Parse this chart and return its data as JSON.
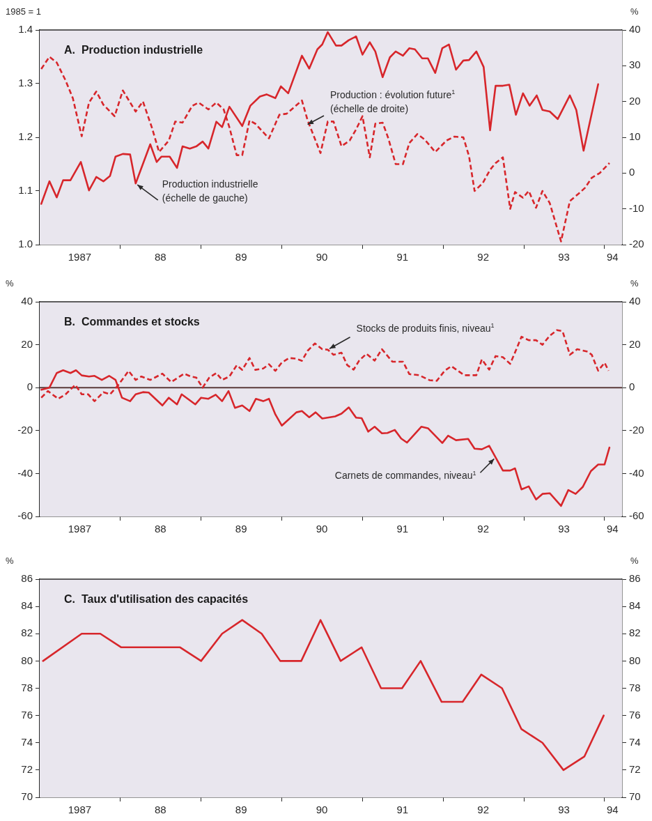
{
  "chart_data": [
    {
      "type": "line",
      "title": "A.  Production industrielle",
      "ylabel": "1985 = 1",
      "y2label": "%",
      "marker": "none",
      "xlim": [
        "1987-01-01",
        "1994-03-21"
      ],
      "xticks": [
        {
          "value": "1987-07-01",
          "label": "1987"
        },
        {
          "value": "1988-01-01",
          "label": null
        },
        {
          "value": "1988-07-01",
          "label": "88"
        },
        {
          "value": "1989-01-01",
          "label": null
        },
        {
          "value": "1989-07-01",
          "label": "89"
        },
        {
          "value": "1990-01-01",
          "label": null
        },
        {
          "value": "1990-07-01",
          "label": "90"
        },
        {
          "value": "1991-01-01",
          "label": null
        },
        {
          "value": "1991-07-01",
          "label": "91"
        },
        {
          "value": "1992-01-01",
          "label": null
        },
        {
          "value": "1992-07-01",
          "label": "92"
        },
        {
          "value": "1993-01-01",
          "label": null
        },
        {
          "value": "1993-07-01",
          "label": "93"
        },
        {
          "value": "1994-01-01",
          "label": null
        },
        {
          "value": "1994-02-06",
          "label": "94"
        }
      ],
      "ylim": [
        1,
        1.4
      ],
      "yticks": [
        {
          "value": 1,
          "label": "1.0"
        },
        1.1,
        1.2,
        1.3,
        1.4
      ],
      "y2lim": [
        -20,
        40
      ],
      "y2ticks": [
        -20,
        -10,
        0,
        10,
        20,
        30,
        40
      ],
      "series": [
        {
          "color": "#d7262b",
          "line_style": "solid",
          "x": [
            "1987-01-08",
            "1987-02-14",
            "1987-03-19",
            "1987-04-17",
            "1987-05-20",
            "1987-07-06",
            "1987-08-12",
            "1987-09-14",
            "1987-10-16",
            "1987-11-15",
            "1987-12-10",
            "1988-01-12",
            "1988-02-14",
            "1988-03-11",
            "1988-05-16",
            "1988-06-14",
            "1988-07-06",
            "1988-08-12",
            "1988-09-14",
            "1988-10-09",
            "1988-11-11",
            "1988-12-10",
            "1989-01-08",
            "1989-02-03",
            "1989-03-11",
            "1989-04-06",
            "1989-05-09",
            "1989-07-06",
            "1989-08-12",
            "1989-09-24",
            "1989-10-24",
            "1989-12-03",
            "1989-12-28",
            "1990-01-30",
            "1990-04-02",
            "1990-05-05",
            "1990-06-11",
            "1990-07-03",
            "1990-07-28",
            "1990-09-03",
            "1990-09-28",
            "1990-10-31",
            "1990-12-03",
            "1991-01-01",
            "1991-02-03",
            "1991-02-28",
            "1991-04-02",
            "1991-05-05",
            "1991-05-31",
            "1991-07-03",
            "1991-08-01",
            "1991-08-26",
            "1991-09-28",
            "1991-10-24",
            "1991-11-26",
            "1991-12-28",
            "1992-01-27",
            "1992-02-28",
            "1992-04-02",
            "1992-04-28",
            "1992-05-31",
            "1992-07-03",
            "1992-08-01",
            "1992-08-26",
            "1992-09-28",
            "1992-10-27",
            "1992-11-26",
            "1992-12-28",
            "1993-01-27",
            "1993-02-28",
            "1993-03-26",
            "1993-04-28",
            "1993-06-03",
            "1993-07-28",
            "1993-08-26",
            "1993-09-28",
            "1993-12-03"
          ],
          "values": [
            1.076,
            1.118,
            1.088,
            1.12,
            1.12,
            1.154,
            1.101,
            1.126,
            1.118,
            1.128,
            1.164,
            1.169,
            1.168,
            1.114,
            1.187,
            1.154,
            1.164,
            1.164,
            1.143,
            1.183,
            1.179,
            1.183,
            1.192,
            1.179,
            1.229,
            1.219,
            1.257,
            1.221,
            1.259,
            1.276,
            1.28,
            1.273,
            1.295,
            1.282,
            1.352,
            1.328,
            1.364,
            1.373,
            1.396,
            1.371,
            1.371,
            1.381,
            1.388,
            1.354,
            1.377,
            1.36,
            1.312,
            1.349,
            1.36,
            1.352,
            1.366,
            1.364,
            1.347,
            1.347,
            1.32,
            1.366,
            1.373,
            1.326,
            1.343,
            1.344,
            1.36,
            1.331,
            1.213,
            1.296,
            1.296,
            1.298,
            1.242,
            1.282,
            1.259,
            1.278,
            1.251,
            1.248,
            1.234,
            1.278,
            1.251,
            1.175,
            1.299
          ]
        },
        {
          "color": "#d7262b",
          "line_style": "dashed",
          "axis": "y2",
          "x": [
            "1987-01-08",
            "1987-02-14",
            "1987-03-19",
            "1987-04-28",
            "1987-05-31",
            "1987-07-10",
            "1987-08-12",
            "1987-09-14",
            "1987-10-16",
            "1987-12-06",
            "1988-01-12",
            "1988-03-11",
            "1988-04-13",
            "1988-05-23",
            "1988-06-25",
            "1988-08-08",
            "1988-09-06",
            "1988-10-09",
            "1988-11-22",
            "1988-12-21",
            "1989-02-03",
            "1989-03-11",
            "1989-04-13",
            "1989-05-09",
            "1989-06-11",
            "1989-07-06",
            "1989-08-08",
            "1989-09-03",
            "1989-11-04",
            "1989-12-21",
            "1990-01-23",
            "1990-04-02",
            "1990-04-28",
            "1990-06-25",
            "1990-07-28",
            "1990-08-23",
            "1990-09-28",
            "1990-11-04",
            "1990-12-03",
            "1991-01-01",
            "1991-02-03",
            "1991-02-28",
            "1991-04-02",
            "1991-04-28",
            "1991-05-31",
            "1991-07-03",
            "1991-08-01",
            "1991-09-06",
            "1991-10-09",
            "1991-11-26",
            "1992-01-16",
            "1992-02-21",
            "1992-04-02",
            "1992-04-28",
            "1992-05-23",
            "1992-06-29",
            "1992-08-01",
            "1992-08-26",
            "1992-09-28",
            "1992-10-31",
            "1992-11-22",
            "1992-12-28",
            "1993-01-23",
            "1993-02-25",
            "1993-03-26",
            "1993-04-28",
            "1993-06-18",
            "1993-07-28",
            "1993-09-03",
            "1993-10-05",
            "1993-11-04",
            "1993-12-10",
            "1994-01-23"
          ],
          "values": [
            29.1,
            32.5,
            30.9,
            25.9,
            20.9,
            10.3,
            19.7,
            22.8,
            19.1,
            15.9,
            23.1,
            17.2,
            20,
            12.8,
            5.9,
            9.1,
            14.4,
            14.1,
            18.8,
            19.7,
            17.8,
            19.7,
            17.8,
            12.8,
            5,
            5,
            14.7,
            13.8,
            9.7,
            16.3,
            16.6,
            20.3,
            14.7,
            5.6,
            14.4,
            14.4,
            7.5,
            9.1,
            12.2,
            15.9,
            4.4,
            13.8,
            14.1,
            9.7,
            2.5,
            2.5,
            8.4,
            10.9,
            9.4,
            5.9,
            9.1,
            10.2,
            10,
            4.7,
            -5,
            -2.8,
            0.9,
            2.8,
            4.4,
            -10,
            -5.3,
            -6.9,
            -5,
            -9.7,
            -5,
            -8.4,
            -19.1,
            -7.8,
            -5.9,
            -4.1,
            -1.3,
            0,
            2.8
          ]
        }
      ],
      "annotations": [
        {
          "text": "Production industrielle (échelle de gauche)",
          "x": "1988-03-11",
          "y": 1.114
        },
        "Production : évolution future$^{1}$ (échelle de droite)"
      ]
    },
    {
      "type": "line",
      "title": "B.  Commandes et stocks",
      "ylabel": "%",
      "y2label": "%",
      "marker": "none",
      "xlim": [
        "1987-01-01",
        "1994-03-21"
      ],
      "xticks": [
        {
          "value": "1987-07-01",
          "label": "1987"
        },
        {
          "value": "1988-01-01",
          "label": null
        },
        {
          "value": "1988-07-01",
          "label": "88"
        },
        {
          "value": "1989-01-01",
          "label": null
        },
        {
          "value": "1989-07-01",
          "label": "89"
        },
        {
          "value": "1990-01-01",
          "label": null
        },
        {
          "value": "1990-07-01",
          "label": "90"
        },
        {
          "value": "1991-01-01",
          "label": null
        },
        {
          "value": "1991-07-01",
          "label": "91"
        },
        {
          "value": "1992-01-01",
          "label": null
        },
        {
          "value": "1992-07-01",
          "label": "92"
        },
        {
          "value": "1993-01-01",
          "label": null
        },
        {
          "value": "1993-07-01",
          "label": "93"
        },
        {
          "value": "1994-01-01",
          "label": null
        },
        {
          "value": "1994-02-06",
          "label": "94"
        }
      ],
      "ylim": [
        -60,
        40
      ],
      "yticks": [
        -60,
        -40,
        -20,
        0,
        20,
        40
      ],
      "y2lim": [
        -60,
        40
      ],
      "y2ticks": [
        -60,
        -40,
        -20,
        0,
        20,
        40
      ],
      "ref_lines": [
        {
          "axis": "y",
          "value": 0,
          "color": "#5a3a3a"
        }
      ],
      "series": [
        {
          "color": "#d7262b",
          "line_style": "dashed",
          "x": [
            "1987-01-08",
            "1987-02-07",
            "1987-03-26",
            "1987-04-28",
            "1987-06-11",
            "1987-07-10",
            "1987-08-08",
            "1987-09-06",
            "1987-10-16",
            "1987-11-15",
            "1987-12-21",
            "1988-02-07",
            "1988-03-11",
            "1988-04-06",
            "1988-05-16",
            "1988-07-10",
            "1988-08-19",
            "1988-10-16",
            "1988-11-15",
            "1988-12-10",
            "1989-01-08",
            "1989-02-07",
            "1989-03-11",
            "1989-04-06",
            "1989-05-09",
            "1989-06-11",
            "1989-07-06",
            "1989-08-08",
            "1989-09-03",
            "1989-10-09",
            "1989-11-04",
            "1989-12-03",
            "1990-01-01",
            "1990-02-03",
            "1990-03-08",
            "1990-04-02",
            "1990-04-28",
            "1990-05-31",
            "1990-07-03",
            "1990-07-28",
            "1990-08-23",
            "1990-09-28",
            "1990-10-24",
            "1990-11-22",
            "1990-12-17",
            "1991-01-19",
            "1991-02-25",
            "1991-03-30",
            "1991-05-16",
            "1991-07-03",
            "1991-08-01",
            "1991-09-14",
            "1991-10-31",
            "1991-12-03",
            "1992-01-08",
            "1992-02-07",
            "1992-03-15",
            "1992-04-06",
            "1992-05-31",
            "1992-06-25",
            "1992-07-28",
            "1992-08-26",
            "1992-09-28",
            "1992-10-31",
            "1992-11-26",
            "1992-12-21",
            "1993-01-23",
            "1993-02-25",
            "1993-03-26",
            "1993-04-28",
            "1993-05-31",
            "1993-06-25",
            "1993-07-28",
            "1993-08-30",
            "1993-10-16",
            "1993-11-04",
            "1993-12-03",
            "1994-01-01",
            "1994-01-19"
          ],
          "values": [
            -4.7,
            -1.6,
            -5.2,
            -3.1,
            1.3,
            -3.1,
            -3.1,
            -6.3,
            -2.1,
            -3.1,
            1,
            7.8,
            3.6,
            5.2,
            3.6,
            6.5,
            2.6,
            6.5,
            5.2,
            4.7,
            0,
            4.7,
            6.8,
            3.6,
            5.2,
            10.4,
            8.3,
            13.8,
            8.3,
            8.9,
            10.9,
            7.8,
            11.7,
            13.8,
            13.5,
            12.5,
            17.2,
            20.6,
            17.9,
            17.7,
            15.3,
            16.3,
            10.5,
            8.4,
            12.6,
            15.8,
            12.6,
            17.9,
            12.1,
            12.1,
            6.3,
            5.8,
            3.5,
            3.2,
            7.9,
            10,
            7.4,
            5.8,
            5.8,
            13.2,
            8.4,
            14.7,
            14.2,
            11.1,
            17.4,
            23.7,
            22.1,
            22.1,
            20,
            24.2,
            26.8,
            26.3,
            15.3,
            17.9,
            16.8,
            15.3,
            7.9,
            11.6,
            7.9
          ]
        },
        {
          "color": "#d7262b",
          "line_style": "solid",
          "x": [
            "1987-01-08",
            "1987-02-14",
            "1987-03-19",
            "1987-04-17",
            "1987-05-20",
            "1987-06-14",
            "1987-07-10",
            "1987-08-12",
            "1987-09-06",
            "1987-10-09",
            "1987-11-11",
            "1987-12-10",
            "1988-01-08",
            "1988-02-14",
            "1988-03-11",
            "1988-04-13",
            "1988-05-09",
            "1988-07-10",
            "1988-08-08",
            "1988-09-14",
            "1988-10-05",
            "1988-12-06",
            "1989-01-01",
            "1989-02-03",
            "1989-03-08",
            "1989-04-06",
            "1989-05-05",
            "1989-06-03",
            "1989-07-06",
            "1989-08-08",
            "1989-09-06",
            "1989-10-09",
            "1989-11-04",
            "1989-12-03",
            "1990-01-01",
            "1990-02-03",
            "1990-03-08",
            "1990-04-02",
            "1990-05-05",
            "1990-06-03",
            "1990-07-03",
            "1990-08-30",
            "1990-09-28",
            "1990-10-31",
            "1990-12-03",
            "1990-12-28",
            "1991-01-27",
            "1991-02-25",
            "1991-03-30",
            "1991-04-24",
            "1991-05-27",
            "1991-06-25",
            "1991-07-21",
            "1991-09-24",
            "1991-10-24",
            "1991-12-28",
            "1992-01-23",
            "1992-02-28",
            "1992-04-24",
            "1992-05-23",
            "1992-06-25",
            "1992-07-28",
            "1992-09-28",
            "1992-10-31",
            "1992-11-22",
            "1992-12-21",
            "1993-01-23",
            "1993-02-25",
            "1993-03-26",
            "1993-04-28",
            "1993-06-18",
            "1993-07-21",
            "1993-08-23",
            "1993-09-24",
            "1993-10-31",
            "1993-12-03",
            "1994-01-01",
            "1994-01-23"
          ],
          "values": [
            -1,
            0,
            6.8,
            8.1,
            6.8,
            8.1,
            5.7,
            5.2,
            5.5,
            3.6,
            5.5,
            3.6,
            -4.7,
            -6.3,
            -3.1,
            -2.1,
            -2.3,
            -8.3,
            -4.7,
            -7.8,
            -3.1,
            -7.8,
            -4.7,
            -5.2,
            -3.3,
            -6.3,
            -1.6,
            -9.4,
            -8.3,
            -10.9,
            -5.2,
            -6.3,
            -5.2,
            -12.5,
            -17.7,
            -14.6,
            -11.5,
            -10.9,
            -13.8,
            -11.5,
            -14.4,
            -13.4,
            -12.1,
            -9.2,
            -14,
            -14.2,
            -20.5,
            -18.2,
            -21.3,
            -21.1,
            -19.7,
            -23.7,
            -25.6,
            -18.2,
            -18.9,
            -25.8,
            -22.4,
            -24.5,
            -23.9,
            -28.4,
            -28.7,
            -27.1,
            -38.6,
            -38.6,
            -37.6,
            -47.4,
            -46,
            -52.1,
            -49.5,
            -49.2,
            -55.1,
            -47.7,
            -49.5,
            -46.3,
            -38.9,
            -35.8,
            -35.8,
            -27.9
          ]
        }
      ],
      "annotations": [
        {
          "text": "Stocks de produits finis, niveau$^{1}$",
          "x": "1990-07-28",
          "y": 17.7
        },
        {
          "text": "Carnets de commandes, niveau$^{1}$",
          "x": "1992-08-26",
          "y": -32.5
        }
      ]
    },
    {
      "type": "line",
      "title": "C.  Taux d'utilisation des capacités",
      "ylabel": "%",
      "y2label": "%",
      "marker": "none",
      "xlim": [
        "1987-01-01",
        "1994-03-21"
      ],
      "xticks": [
        {
          "value": "1987-07-01",
          "label": "1987"
        },
        {
          "value": "1988-01-01",
          "label": null
        },
        {
          "value": "1988-07-01",
          "label": "88"
        },
        {
          "value": "1989-01-01",
          "label": null
        },
        {
          "value": "1989-07-01",
          "label": "89"
        },
        {
          "value": "1990-01-01",
          "label": null
        },
        {
          "value": "1990-07-01",
          "label": "90"
        },
        {
          "value": "1991-01-01",
          "label": null
        },
        {
          "value": "1991-07-01",
          "label": "91"
        },
        {
          "value": "1992-01-01",
          "label": null
        },
        {
          "value": "1992-07-01",
          "label": "92"
        },
        {
          "value": "1993-01-01",
          "label": null
        },
        {
          "value": "1993-07-01",
          "label": "93"
        },
        {
          "value": "1994-01-01",
          "label": null
        },
        {
          "value": "1994-02-06",
          "label": "94"
        }
      ],
      "ylim": [
        70,
        86
      ],
      "yticks": [
        70,
        72,
        74,
        76,
        78,
        80,
        82,
        84,
        86
      ],
      "y2lim": [
        70,
        86
      ],
      "y2ticks": [
        70,
        72,
        74,
        76,
        78,
        80,
        82,
        84,
        86
      ],
      "series": [
        {
          "color": "#d7262b",
          "line_style": "solid",
          "x": [
            "1987-01-16",
            "1987-07-10",
            "1987-10-02",
            "1988-01-05",
            "1988-09-28",
            "1989-01-01",
            "1989-04-06",
            "1989-07-06",
            "1989-10-02",
            "1989-12-25",
            "1990-03-30",
            "1990-06-25",
            "1990-09-24",
            "1990-12-28",
            "1991-03-26",
            "1991-06-29",
            "1991-09-21",
            "1991-12-25",
            "1992-03-30",
            "1992-06-22",
            "1992-09-24",
            "1992-12-21",
            "1993-03-26",
            "1993-06-29",
            "1993-10-02",
            "1993-12-28"
          ],
          "values": [
            80,
            82,
            82,
            81,
            81,
            80,
            82,
            83,
            82,
            80,
            80,
            83,
            80,
            81,
            78,
            78,
            80,
            77,
            77,
            79,
            78,
            75,
            74,
            72,
            73,
            76
          ]
        }
      ]
    }
  ]
}
